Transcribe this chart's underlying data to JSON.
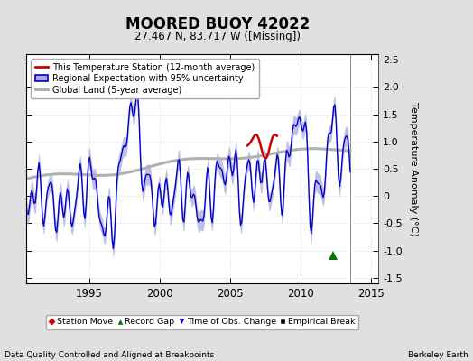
{
  "title": "MOORED BUOY 42022",
  "subtitle": "27.467 N, 83.717 W ([Missing])",
  "ylabel": "Temperature Anomaly (°C)",
  "footer_left": "Data Quality Controlled and Aligned at Breakpoints",
  "footer_right": "Berkeley Earth",
  "xlim": [
    1990.5,
    2015.5
  ],
  "ylim": [
    -1.6,
    2.6
  ],
  "yticks": [
    -1.5,
    -1.0,
    -0.5,
    0.0,
    0.5,
    1.0,
    1.5,
    2.0,
    2.5
  ],
  "xticks": [
    1995,
    2000,
    2005,
    2010,
    2015
  ],
  "background_color": "#e0e0e0",
  "plot_bg_color": "#ffffff",
  "regional_color": "#0000cc",
  "regional_fill_color": "#aaaadd",
  "station_color": "#cc0000",
  "global_color": "#b0b0b0",
  "green_marker_x": 2012.3,
  "green_marker_y": -1.08,
  "vline_x": 2013.5,
  "grid_color": "#cccccc"
}
